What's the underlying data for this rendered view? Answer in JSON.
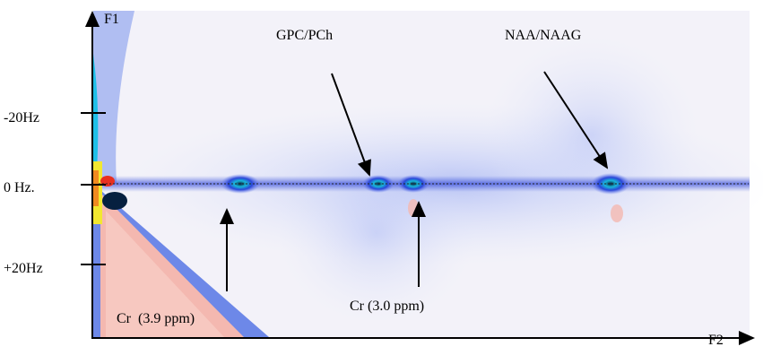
{
  "axes": {
    "y_label": "F1",
    "x_label": "F2",
    "y_tick_labels": [
      "-20Hz",
      "0 Hz.",
      "+20Hz"
    ]
  },
  "annotations": {
    "gpc": "GPC/PCh",
    "naa": "NAA/NAAG",
    "cr39": "Cr  (3.9 ppm)",
    "cr30": "Cr (3.0 ppm)"
  }
}
